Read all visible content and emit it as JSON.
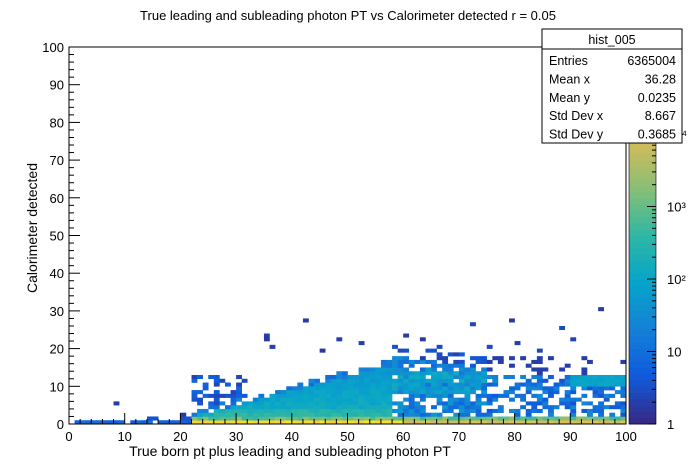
{
  "chart_data": {
    "type": "heatmap",
    "title": "True leading and subleading photon PT vs Calorimeter detected r = 0.05",
    "xlabel": "True born pt plus leading and subleading photon PT",
    "ylabel": "Calorimeter detected",
    "xlim": [
      0,
      100
    ],
    "ylim": [
      0,
      100
    ],
    "x_ticks": [
      "0",
      "10",
      "20",
      "30",
      "40",
      "50",
      "60",
      "70",
      "80",
      "90",
      "100"
    ],
    "y_ticks": [
      "0",
      "10",
      "20",
      "30",
      "40",
      "50",
      "60",
      "70",
      "80",
      "90",
      "100"
    ],
    "z_scale": "log",
    "z_ticks": [
      "1",
      "10",
      "10²",
      "10³",
      "10⁴"
    ],
    "bins_x": 100,
    "bins_y": 100,
    "description_of_content": "Populated bins concentrated at y near 0 for x from 1 to 100 (highest density, yellow); a diffuse band rising from x≈22 to x≈70 with y up to ≈20 (blue/cyan); sparse low-count bins scattered up to y≈27.",
    "stats_box": {
      "name": "hist_005",
      "rows": [
        {
          "label": "Entries",
          "value": "6365004"
        },
        {
          "label": "Mean x",
          "value": "36.28"
        },
        {
          "label": "Mean y",
          "value": "0.0235"
        },
        {
          "label": "Std Dev x",
          "value": "8.667"
        },
        {
          "label": "Std Dev y",
          "value": "0.3685"
        }
      ]
    }
  },
  "colors": {
    "palette": [
      "#352a87",
      "#0f5cdd",
      "#1481d6",
      "#06a4ca",
      "#2eb7a4",
      "#87bf77",
      "#d1bb59",
      "#fec832",
      "#f9fb0e"
    ]
  }
}
